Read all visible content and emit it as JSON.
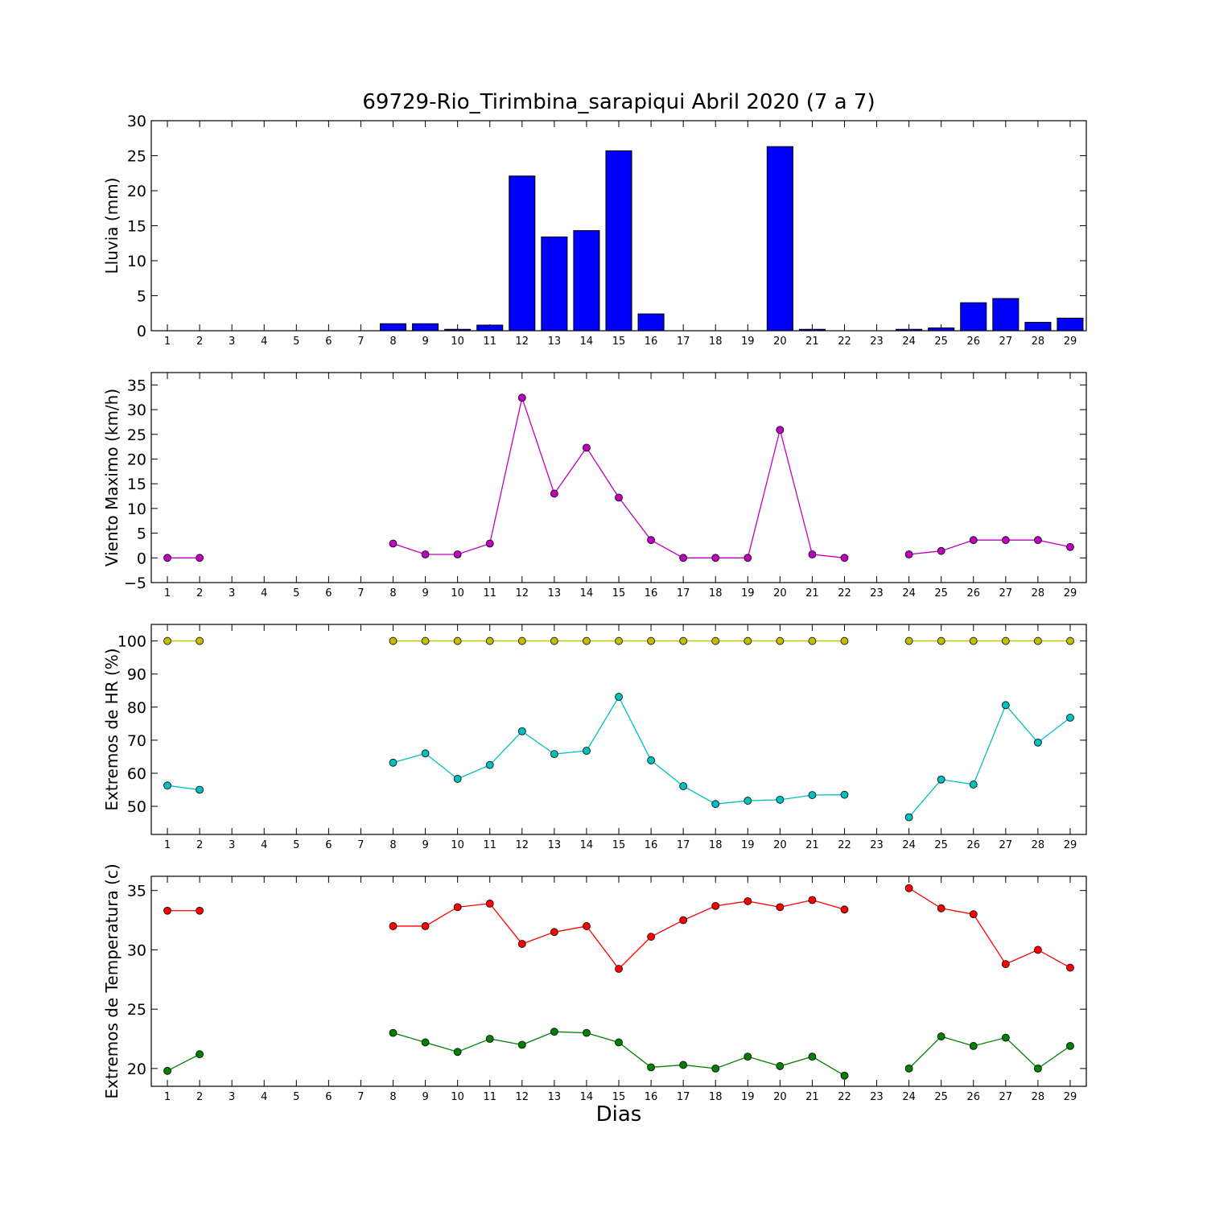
{
  "chart_data": [
    {
      "type": "bar",
      "title": "69729-Rio_Tirimbina_sarapiqui Abril 2020  (7 a 7)",
      "xlabel": "",
      "ylabel": "Lluvia (mm)",
      "ylim": [
        0,
        30
      ],
      "yticks": [
        0,
        5,
        10,
        15,
        20,
        25,
        30
      ],
      "categories": [
        "1",
        "2",
        "3",
        "4",
        "5",
        "6",
        "7",
        "8",
        "9",
        "10",
        "11",
        "12",
        "13",
        "14",
        "15",
        "16",
        "17",
        "18",
        "19",
        "20",
        "21",
        "22",
        "23",
        "24",
        "25",
        "26",
        "27",
        "28",
        "29"
      ],
      "grid": false,
      "series": [
        {
          "color": "#0000ff",
          "values": [
            0,
            0,
            null,
            null,
            null,
            null,
            null,
            1.0,
            1.0,
            0.2,
            0.8,
            22.1,
            13.4,
            14.3,
            25.7,
            2.4,
            0,
            0,
            0,
            26.3,
            0.2,
            0,
            null,
            0.2,
            0.4,
            4.0,
            4.6,
            1.2,
            1.8
          ]
        }
      ]
    },
    {
      "type": "line",
      "ylabel": "Viento Maximo (km/h)",
      "ylim": [
        -5,
        37.5
      ],
      "yticks": [
        -5,
        0,
        5,
        10,
        15,
        20,
        25,
        30,
        35
      ],
      "categories": [
        "1",
        "2",
        "3",
        "4",
        "5",
        "6",
        "7",
        "8",
        "9",
        "10",
        "11",
        "12",
        "13",
        "14",
        "15",
        "16",
        "17",
        "18",
        "19",
        "20",
        "21",
        "22",
        "23",
        "24",
        "25",
        "26",
        "27",
        "28",
        "29"
      ],
      "grid": false,
      "series": [
        {
          "color": "#bf00bf",
          "values": [
            0,
            0,
            null,
            null,
            null,
            null,
            null,
            2.9,
            0.7,
            0.7,
            2.9,
            32.4,
            13.0,
            22.3,
            12.2,
            3.6,
            0,
            0,
            0,
            25.9,
            0.7,
            0,
            null,
            0.7,
            1.4,
            3.6,
            3.6,
            3.6,
            2.2
          ]
        }
      ]
    },
    {
      "type": "line",
      "ylabel": "Extremos de HR (%)",
      "ylim": [
        41.5,
        105
      ],
      "yticks": [
        50,
        60,
        70,
        80,
        90,
        100
      ],
      "categories": [
        "1",
        "2",
        "3",
        "4",
        "5",
        "6",
        "7",
        "8",
        "9",
        "10",
        "11",
        "12",
        "13",
        "14",
        "15",
        "16",
        "17",
        "18",
        "19",
        "20",
        "21",
        "22",
        "23",
        "24",
        "25",
        "26",
        "27",
        "28",
        "29"
      ],
      "grid": false,
      "series": [
        {
          "color": "#bfbf00",
          "values": [
            100,
            100,
            null,
            null,
            null,
            null,
            null,
            100,
            100,
            100,
            100,
            100,
            100,
            100,
            100,
            100,
            100,
            100,
            100,
            100,
            100,
            100,
            null,
            100,
            100,
            100,
            100,
            100,
            100
          ]
        },
        {
          "color": "#00bfbf",
          "values": [
            56.3,
            55.0,
            null,
            null,
            null,
            null,
            null,
            63.2,
            66.0,
            58.3,
            62.5,
            72.7,
            65.8,
            66.8,
            83.1,
            63.9,
            56.1,
            50.7,
            51.7,
            52.0,
            53.4,
            53.5,
            null,
            46.7,
            58.1,
            56.6,
            80.6,
            69.3,
            76.8
          ]
        }
      ]
    },
    {
      "type": "line",
      "ylabel": "Extremos de Temperatura (c)",
      "ylim": [
        18.5,
        36.2
      ],
      "yticks": [
        20,
        25,
        30,
        35
      ],
      "categories": [
        "1",
        "2",
        "3",
        "4",
        "5",
        "6",
        "7",
        "8",
        "9",
        "10",
        "11",
        "12",
        "13",
        "14",
        "15",
        "16",
        "17",
        "18",
        "19",
        "20",
        "21",
        "22",
        "23",
        "24",
        "25",
        "26",
        "27",
        "28",
        "29"
      ],
      "grid": false,
      "series": [
        {
          "color": "#ff0000",
          "values": [
            33.3,
            33.3,
            null,
            null,
            null,
            null,
            null,
            32.0,
            32.0,
            33.6,
            33.9,
            30.5,
            31.5,
            32.0,
            28.4,
            31.1,
            32.5,
            33.7,
            34.1,
            33.6,
            34.2,
            33.4,
            null,
            35.2,
            33.5,
            33.0,
            28.8,
            30.0,
            28.5
          ]
        },
        {
          "color": "#008000",
          "values": [
            19.8,
            21.2,
            null,
            null,
            null,
            null,
            null,
            23.0,
            22.2,
            21.4,
            22.5,
            22.0,
            23.1,
            23.0,
            22.2,
            20.1,
            20.3,
            20.0,
            21.0,
            20.2,
            21.0,
            19.4,
            null,
            20.0,
            22.7,
            21.9,
            22.6,
            20.0,
            21.9
          ]
        }
      ]
    }
  ],
  "figure": {
    "title": "69729-Rio_Tirimbina_sarapiqui Abril 2020  (7 a 7)",
    "xlabel": "Dias"
  }
}
